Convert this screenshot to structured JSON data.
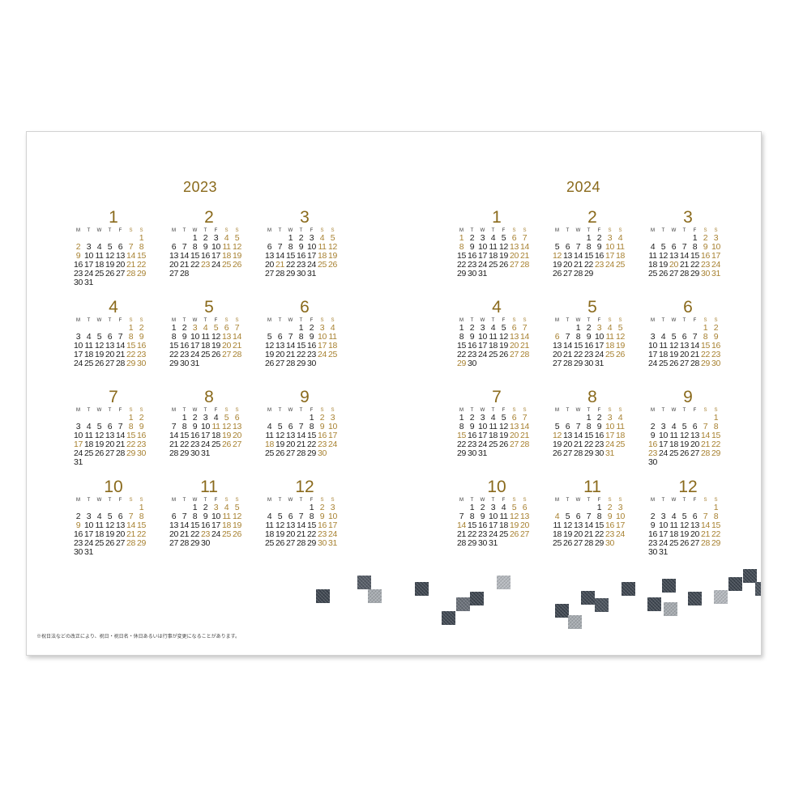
{
  "calendar": {
    "weekday_letters": [
      "M",
      "T",
      "W",
      "T",
      "F",
      "S",
      "S"
    ],
    "years": [
      {
        "year": "2023",
        "months": [
          {
            "num": "1",
            "first": 6,
            "days": 31,
            "holidays": [
              2,
              9
            ]
          },
          {
            "num": "2",
            "first": 2,
            "days": 28,
            "holidays": [
              11,
              23
            ]
          },
          {
            "num": "3",
            "first": 2,
            "days": 31,
            "holidays": [
              21
            ]
          },
          {
            "num": "4",
            "first": 5,
            "days": 30,
            "holidays": [
              29
            ]
          },
          {
            "num": "5",
            "first": 0,
            "days": 31,
            "holidays": [
              3,
              4,
              5
            ]
          },
          {
            "num": "6",
            "first": 3,
            "days": 30,
            "holidays": []
          },
          {
            "num": "7",
            "first": 5,
            "days": 31,
            "holidays": [
              17
            ]
          },
          {
            "num": "8",
            "first": 1,
            "days": 31,
            "holidays": [
              11
            ]
          },
          {
            "num": "9",
            "first": 4,
            "days": 30,
            "holidays": [
              18,
              23
            ]
          },
          {
            "num": "10",
            "first": 6,
            "days": 31,
            "holidays": [
              9
            ]
          },
          {
            "num": "11",
            "first": 2,
            "days": 30,
            "holidays": [
              3,
              23
            ]
          },
          {
            "num": "12",
            "first": 4,
            "days": 31,
            "holidays": []
          }
        ]
      },
      {
        "year": "2024",
        "months": [
          {
            "num": "1",
            "first": 0,
            "days": 31,
            "holidays": [
              1,
              8
            ]
          },
          {
            "num": "2",
            "first": 3,
            "days": 29,
            "holidays": [
              11,
              12,
              23
            ]
          },
          {
            "num": "3",
            "first": 4,
            "days": 31,
            "holidays": [
              20
            ]
          },
          {
            "num": "4",
            "first": 0,
            "days": 30,
            "holidays": [
              29
            ]
          },
          {
            "num": "5",
            "first": 2,
            "days": 31,
            "holidays": [
              3,
              4,
              5,
              6
            ]
          },
          {
            "num": "6",
            "first": 5,
            "days": 30,
            "holidays": []
          },
          {
            "num": "7",
            "first": 0,
            "days": 31,
            "holidays": [
              15
            ]
          },
          {
            "num": "8",
            "first": 3,
            "days": 31,
            "holidays": [
              11,
              12
            ]
          },
          {
            "num": "9",
            "first": 6,
            "days": 30,
            "holidays": [
              16,
              22,
              23
            ]
          },
          {
            "num": "10",
            "first": 1,
            "days": 31,
            "holidays": [
              14
            ]
          },
          {
            "num": "11",
            "first": 4,
            "days": 30,
            "holidays": [
              3,
              4,
              23
            ]
          },
          {
            "num": "12",
            "first": 6,
            "days": 31,
            "holidays": []
          }
        ]
      }
    ],
    "footnote": "※祝日法などの改正により、祝日・祝日名・休日あるいは行事が変更になることがあります。"
  },
  "colors": {
    "weekday_text": "#1e1e1e",
    "weekend_text": "#a88232",
    "heading": "#8a6a1c"
  },
  "decoration_icons": "glitter-tile-icon"
}
